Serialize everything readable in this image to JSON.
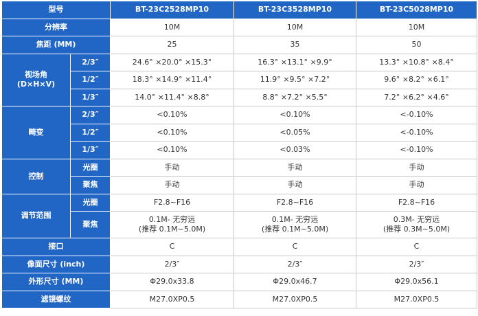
{
  "table": {
    "header": [
      "型号",
      "BT-23C2528MP10",
      "BT-23C3528MP10",
      "BT-23C5028MP10"
    ],
    "sections": [
      {
        "label": "分辨率",
        "rows": [
          {
            "cells": [
              "10M",
              "10M",
              "10M"
            ]
          }
        ]
      },
      {
        "label": "焦距 (MM)",
        "rows": [
          {
            "cells": [
              "25",
              "35",
              "50"
            ]
          }
        ]
      },
      {
        "label": "视场角\n(D×H×V)",
        "rows": [
          {
            "sub": "2/3″",
            "cells": [
              "24.6° ×20.0° ×15.3°",
              "16.3° ×13.1° ×9.9°",
              "13.3° ×10.8° ×8.4°"
            ]
          },
          {
            "sub": "1/2″",
            "cells": [
              "18.3° ×14.9° ×11.4°",
              "11.9° ×9.5° ×7.2°",
              "9.6° ×8.2° ×6.1°"
            ]
          },
          {
            "sub": "1/3″",
            "cells": [
              "14.0° ×11.4° ×8.8°",
              "8.8° ×7.2° ×5.5°",
              "7.2° ×6.2° ×4.6°"
            ]
          }
        ]
      },
      {
        "label": "畸变",
        "rows": [
          {
            "sub": "2/3″",
            "cells": [
              "<0.10%",
              "<0.10%",
              "<-0.10%"
            ]
          },
          {
            "sub": "1/2″",
            "cells": [
              "<0.10%",
              "<0.05%",
              "<-0.10%"
            ]
          },
          {
            "sub": "1/3″",
            "cells": [
              "<0.10%",
              "<0.03%",
              "<-0.10%"
            ]
          }
        ]
      },
      {
        "label": "控制",
        "rows": [
          {
            "sub": "光圈",
            "cells": [
              "手动",
              "手动",
              "手动"
            ]
          },
          {
            "sub": "聚焦",
            "cells": [
              "手动",
              "手动",
              "手动"
            ]
          }
        ]
      },
      {
        "label": "调节范围",
        "rows": [
          {
            "sub": "光圈",
            "cells": [
              "F2.8~F16",
              "F2.8~F16",
              "F2.8~F16"
            ]
          },
          {
            "sub": "聚焦",
            "cells": [
              "0.1M- 无穷远\n(推荐 0.1M~5.0M)",
              "0.1M- 无穷远\n(推荐 0.1M~5.0M)",
              "0.3M- 无穷远\n(推荐 0.3M~5.0M)"
            ]
          }
        ]
      },
      {
        "label": "接口",
        "rows": [
          {
            "cells": [
              "C",
              "C",
              "C"
            ]
          }
        ]
      },
      {
        "label": "像面尺寸 (inch)",
        "rows": [
          {
            "cells": [
              "2/3″",
              "2/3″",
              "2/3″"
            ]
          }
        ]
      },
      {
        "label": "外形尺寸 (MM)",
        "rows": [
          {
            "cells": [
              "Φ29.0x33.8",
              "Φ29.0x46.7",
              "Φ29.0x56.1"
            ]
          }
        ]
      },
      {
        "label": "滤镜螺纹",
        "rows": [
          {
            "cells": [
              "M27.0XP0.5",
              "M27.0XP0.5",
              "M27.0XP0.5"
            ]
          }
        ]
      }
    ]
  }
}
